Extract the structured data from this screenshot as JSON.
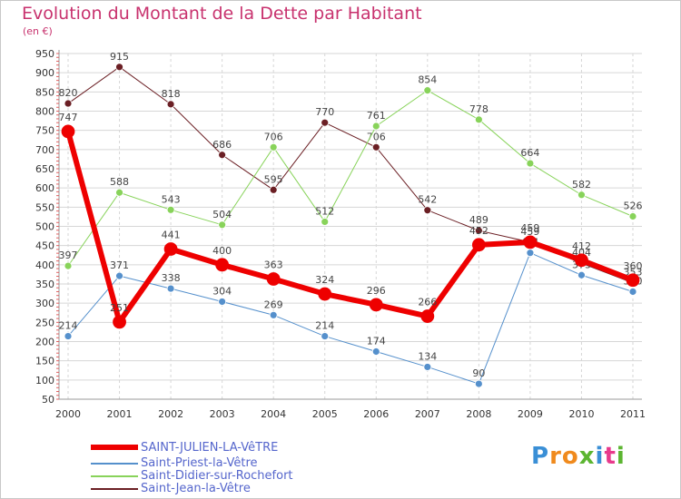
{
  "header": {
    "title": "Evolution du Montant de la Dette par Habitant",
    "subtitle": "(en €)"
  },
  "colors": {
    "title": "#c8326e",
    "axis_text": "#333333",
    "grid": "#d6d6d6",
    "legend_text": "#5566cc"
  },
  "chart_data": {
    "type": "line",
    "title": "Evolution du Montant de la Dette par Habitant",
    "subtitle": "(en €)",
    "xlabel": "",
    "ylabel": "",
    "x": [
      "2000",
      "2001",
      "2002",
      "2003",
      "2004",
      "2005",
      "2006",
      "2007",
      "2008",
      "2009",
      "2010",
      "2011"
    ],
    "ylim": [
      50,
      950
    ],
    "yticks": [
      50,
      100,
      150,
      200,
      250,
      300,
      350,
      400,
      450,
      500,
      550,
      600,
      650,
      700,
      750,
      800,
      850,
      900,
      950
    ],
    "grid": true,
    "legend_position": "bottom-left",
    "series": [
      {
        "name": "Saint-Jean-la-Vêtre",
        "color": "#6b1f24",
        "width": 1,
        "marker": 4,
        "values": [
          820,
          915,
          818,
          686,
          595,
          770,
          706,
          542,
          489,
          459,
          404,
          353
        ]
      },
      {
        "name": "Saint-Didier-sur-Rochefort",
        "color": "#88d35a",
        "width": 1,
        "marker": 4,
        "values": [
          397,
          588,
          543,
          504,
          706,
          512,
          761,
          854,
          778,
          664,
          582,
          526
        ]
      },
      {
        "name": "Saint-Priest-la-Vêtre",
        "color": "#5590cc",
        "width": 1,
        "marker": 4,
        "values": [
          214,
          371,
          338,
          304,
          269,
          214,
          174,
          134,
          90,
          431,
          373,
          330
        ]
      },
      {
        "name": "SAINT-JULIEN-LA-VêTRE",
        "color": "#ee0000",
        "width": 6,
        "marker": 7,
        "values": [
          747,
          251,
          441,
          400,
          363,
          324,
          296,
          266,
          452,
          459,
          412,
          360
        ]
      }
    ],
    "legend": [
      {
        "name": "SAINT-JULIEN-LA-VêTRE",
        "color": "#ee0000",
        "thickness": 6
      },
      {
        "name": "Saint-Priest-la-Vêtre",
        "color": "#5590cc",
        "thickness": 2
      },
      {
        "name": "Saint-Didier-sur-Rochefort",
        "color": "#88d35a",
        "thickness": 2
      },
      {
        "name": "Saint-Jean-la-Vêtre",
        "color": "#6b1f24",
        "thickness": 2
      }
    ]
  },
  "logo": {
    "letters": [
      "P",
      "r",
      "o",
      "x",
      "i",
      "t",
      "i"
    ],
    "colors": [
      "#3a8fd6",
      "#f08a1d",
      "#f08a1d",
      "#5cb531",
      "#3a8fd6",
      "#e83a8c",
      "#5cb531"
    ]
  }
}
